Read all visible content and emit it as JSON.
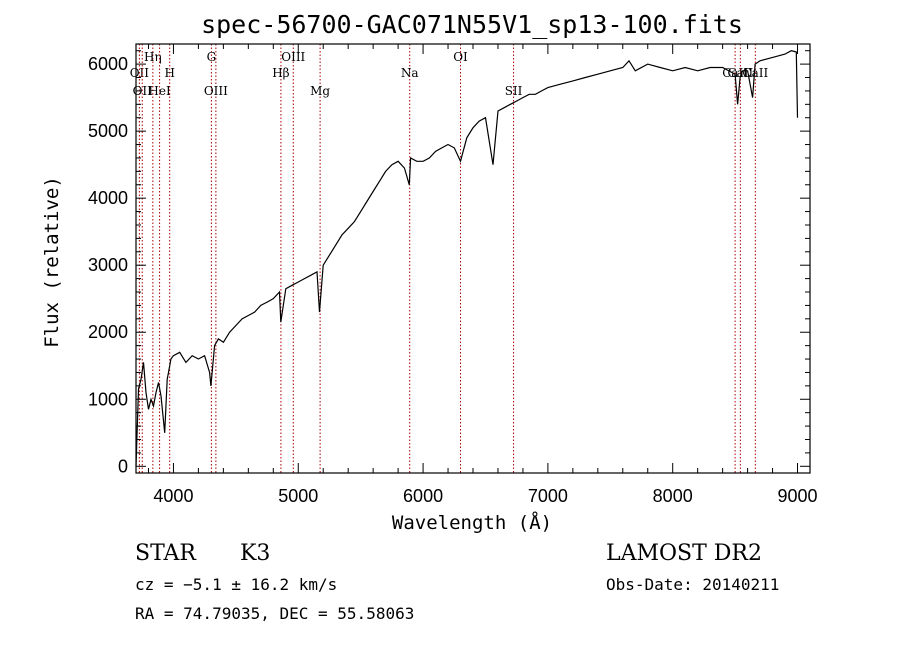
{
  "chart_data": {
    "type": "line",
    "title": "spec-56700-GAC071N55V1_sp13-100.fits",
    "xlabel": "Wavelength (Å)",
    "ylabel": "Flux (relative)",
    "xlim": [
      3700,
      9100
    ],
    "ylim": [
      -100,
      6300
    ],
    "xticks": [
      4000,
      5000,
      6000,
      7000,
      8000,
      9000
    ],
    "yticks": [
      0,
      1000,
      2000,
      3000,
      4000,
      5000,
      6000
    ],
    "grid": false,
    "series": [
      {
        "x": [
          3700,
          3720,
          3740,
          3760,
          3780,
          3800,
          3820,
          3840,
          3860,
          3880,
          3900,
          3930,
          3950,
          3960,
          3980,
          4000,
          4050,
          4100,
          4150,
          4200,
          4250,
          4290,
          4300,
          4330,
          4360,
          4400,
          4450,
          4500,
          4550,
          4600,
          4650,
          4700,
          4750,
          4800,
          4850,
          4860,
          4900,
          4950,
          5000,
          5050,
          5100,
          5150,
          5170,
          5200,
          5250,
          5300,
          5350,
          5400,
          5450,
          5500,
          5550,
          5600,
          5650,
          5700,
          5750,
          5800,
          5850,
          5890,
          5900,
          5950,
          6000,
          6050,
          6100,
          6150,
          6200,
          6250,
          6300,
          6350,
          6400,
          6450,
          6500,
          6560,
          6600,
          6650,
          6700,
          6750,
          6800,
          6850,
          6900,
          6950,
          7000,
          7100,
          7200,
          7300,
          7400,
          7500,
          7600,
          7650,
          7700,
          7800,
          7900,
          8000,
          8100,
          8200,
          8300,
          8400,
          8500,
          8520,
          8540,
          8560,
          8600,
          8640,
          8660,
          8700,
          8800,
          8900,
          8950,
          8990,
          9000
        ],
        "y": [
          0,
          1150,
          1300,
          1550,
          1100,
          850,
          1000,
          900,
          1100,
          1250,
          1050,
          500,
          1300,
          1400,
          1600,
          1650,
          1700,
          1550,
          1650,
          1600,
          1650,
          1400,
          1200,
          1800,
          1900,
          1850,
          2000,
          2100,
          2200,
          2250,
          2300,
          2400,
          2450,
          2500,
          2600,
          2150,
          2650,
          2700,
          2750,
          2800,
          2850,
          2900,
          2300,
          3000,
          3150,
          3300,
          3450,
          3550,
          3650,
          3800,
          3950,
          4100,
          4250,
          4400,
          4500,
          4550,
          4450,
          4200,
          4600,
          4550,
          4550,
          4600,
          4700,
          4750,
          4800,
          4750,
          4550,
          4900,
          5050,
          5150,
          5200,
          4500,
          5300,
          5350,
          5400,
          5450,
          5500,
          5550,
          5550,
          5600,
          5650,
          5700,
          5750,
          5800,
          5850,
          5900,
          5950,
          6050,
          5900,
          6000,
          5950,
          5900,
          5950,
          5900,
          5950,
          5950,
          5850,
          5400,
          5800,
          5900,
          5900,
          5500,
          6000,
          6050,
          6100,
          6150,
          6200,
          6180,
          5200
        ]
      }
    ],
    "line_markers": [
      {
        "x": 3727,
        "label": "OII",
        "row": 2
      },
      {
        "x": 3750,
        "label": "OII",
        "row": 3
      },
      {
        "x": 3835,
        "label": "Hη",
        "row": 1
      },
      {
        "x": 3889,
        "label": "HeI",
        "row": 3
      },
      {
        "x": 3970,
        "label": "H",
        "row": 2
      },
      {
        "x": 4304,
        "label": "G",
        "row": 1
      },
      {
        "x": 4340,
        "label": "OIII",
        "row": 3
      },
      {
        "x": 4861,
        "label": "Hβ",
        "row": 2
      },
      {
        "x": 4960,
        "label": "OIII",
        "row": 1
      },
      {
        "x": 5175,
        "label": "Mg",
        "row": 3
      },
      {
        "x": 5893,
        "label": "Na",
        "row": 2
      },
      {
        "x": 6300,
        "label": "OI",
        "row": 1
      },
      {
        "x": 6725,
        "label": "SII",
        "row": 3
      },
      {
        "x": 8500,
        "label": "CaII",
        "row": 2
      },
      {
        "x": 8542,
        "label": "CaII",
        "row": 2
      },
      {
        "x": 8662,
        "label": "CaII",
        "row": 2
      }
    ],
    "line_color": "#aa0000"
  },
  "info": {
    "class_label": "STAR",
    "subclass": "K3",
    "survey": "LAMOST DR2",
    "cz": "cz = −5.1 ± 16.2 km/s",
    "obs_date": "Obs-Date: 20140211",
    "coords": "RA =  74.79035, DEC =  55.58063"
  }
}
